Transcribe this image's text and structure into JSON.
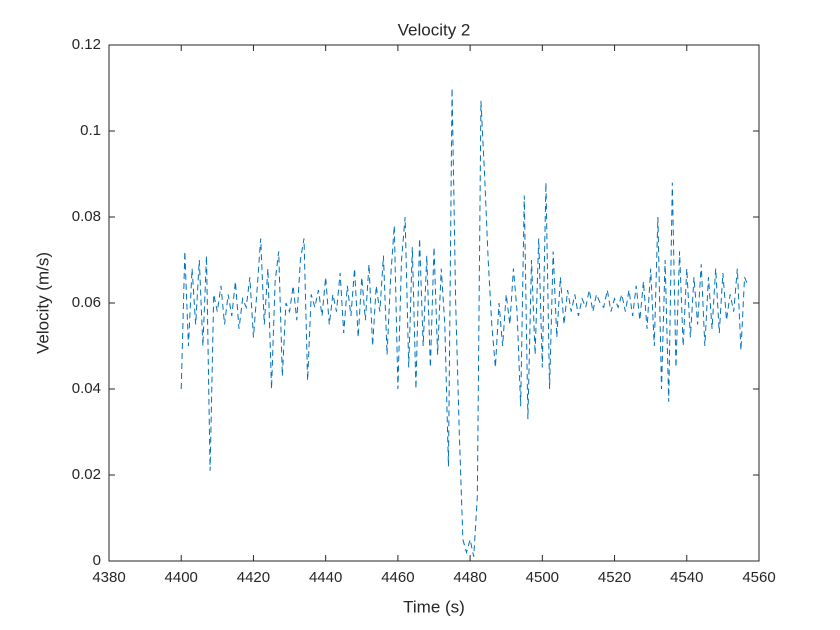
{
  "chart_data": {
    "type": "line",
    "title": "Velocity 2",
    "x_label": "Time (s)",
    "y_label": "Velocity (m/s)",
    "x": [
      4400,
      4401,
      4402,
      4403,
      4404,
      4405,
      4406,
      4407,
      4408,
      4409,
      4410,
      4411,
      4412,
      4413,
      4414,
      4415,
      4416,
      4417,
      4418,
      4419,
      4420,
      4421,
      4422,
      4423,
      4424,
      4425,
      4426,
      4427,
      4428,
      4429,
      4430,
      4431,
      4432,
      4433,
      4434,
      4435,
      4436,
      4437,
      4438,
      4439,
      4440,
      4441,
      4442,
      4443,
      4444,
      4445,
      4446,
      4447,
      4448,
      4449,
      4450,
      4451,
      4452,
      4453,
      4454,
      4455,
      4456,
      4457,
      4458,
      4459,
      4460,
      4461,
      4462,
      4463,
      4464,
      4465,
      4466,
      4467,
      4468,
      4469,
      4470,
      4471,
      4472,
      4473,
      4474,
      4475,
      4476,
      4477,
      4478,
      4479,
      4480,
      4481,
      4482,
      4483,
      4484,
      4485,
      4486,
      4487,
      4488,
      4489,
      4490,
      4491,
      4492,
      4493,
      4494,
      4495,
      4496,
      4497,
      4498,
      4499,
      4500,
      4501,
      4502,
      4503,
      4504,
      4505,
      4506,
      4507,
      4508,
      4509,
      4510,
      4511,
      4512,
      4513,
      4514,
      4515,
      4516,
      4517,
      4518,
      4519,
      4520,
      4521,
      4522,
      4523,
      4524,
      4525,
      4526,
      4527,
      4528,
      4529,
      4530,
      4531,
      4532,
      4533,
      4534,
      4535,
      4536,
      4537,
      4538,
      4539,
      4540,
      4541,
      4542,
      4543,
      4544,
      4545,
      4546,
      4547,
      4548,
      4549,
      4550,
      4551,
      4552,
      4553,
      4554,
      4555,
      4556,
      4557
    ],
    "series": [
      {
        "color": "#0072bd",
        "dash": "6,4",
        "values": [
          0.04,
          0.072,
          0.05,
          0.068,
          0.055,
          0.07,
          0.05,
          0.071,
          0.021,
          0.062,
          0.058,
          0.064,
          0.055,
          0.062,
          0.057,
          0.065,
          0.054,
          0.061,
          0.059,
          0.066,
          0.052,
          0.063,
          0.075,
          0.055,
          0.068,
          0.04,
          0.065,
          0.072,
          0.043,
          0.06,
          0.058,
          0.064,
          0.056,
          0.07,
          0.075,
          0.042,
          0.062,
          0.059,
          0.063,
          0.057,
          0.066,
          0.055,
          0.062,
          0.058,
          0.067,
          0.053,
          0.064,
          0.057,
          0.068,
          0.052,
          0.066,
          0.056,
          0.069,
          0.05,
          0.064,
          0.058,
          0.071,
          0.048,
          0.066,
          0.078,
          0.04,
          0.07,
          0.08,
          0.045,
          0.073,
          0.04,
          0.075,
          0.05,
          0.071,
          0.045,
          0.073,
          0.048,
          0.068,
          0.055,
          0.022,
          0.11,
          0.06,
          0.03,
          0.005,
          0.002,
          0.005,
          0.001,
          0.015,
          0.107,
          0.09,
          0.07,
          0.055,
          0.045,
          0.06,
          0.05,
          0.062,
          0.055,
          0.068,
          0.058,
          0.036,
          0.085,
          0.033,
          0.07,
          0.048,
          0.075,
          0.045,
          0.088,
          0.04,
          0.072,
          0.052,
          0.066,
          0.055,
          0.063,
          0.058,
          0.062,
          0.057,
          0.061,
          0.059,
          0.063,
          0.058,
          0.062,
          0.06,
          0.059,
          0.063,
          0.058,
          0.061,
          0.059,
          0.062,
          0.058,
          0.063,
          0.057,
          0.064,
          0.056,
          0.065,
          0.054,
          0.068,
          0.05,
          0.08,
          0.04,
          0.07,
          0.037,
          0.088,
          0.045,
          0.072,
          0.05,
          0.068,
          0.052,
          0.066,
          0.055,
          0.069,
          0.05,
          0.066,
          0.054,
          0.068,
          0.053,
          0.067,
          0.056,
          0.062,
          0.058,
          0.068,
          0.049,
          0.066,
          0.064
        ]
      }
    ],
    "xlim": [
      4380,
      4560
    ],
    "xticks": [
      4380,
      4400,
      4420,
      4440,
      4460,
      4480,
      4500,
      4520,
      4540,
      4560
    ],
    "ylim": [
      0,
      0.12
    ],
    "yticks": [
      0,
      0.02,
      0.04,
      0.06,
      0.08,
      0.1,
      0.12
    ]
  }
}
